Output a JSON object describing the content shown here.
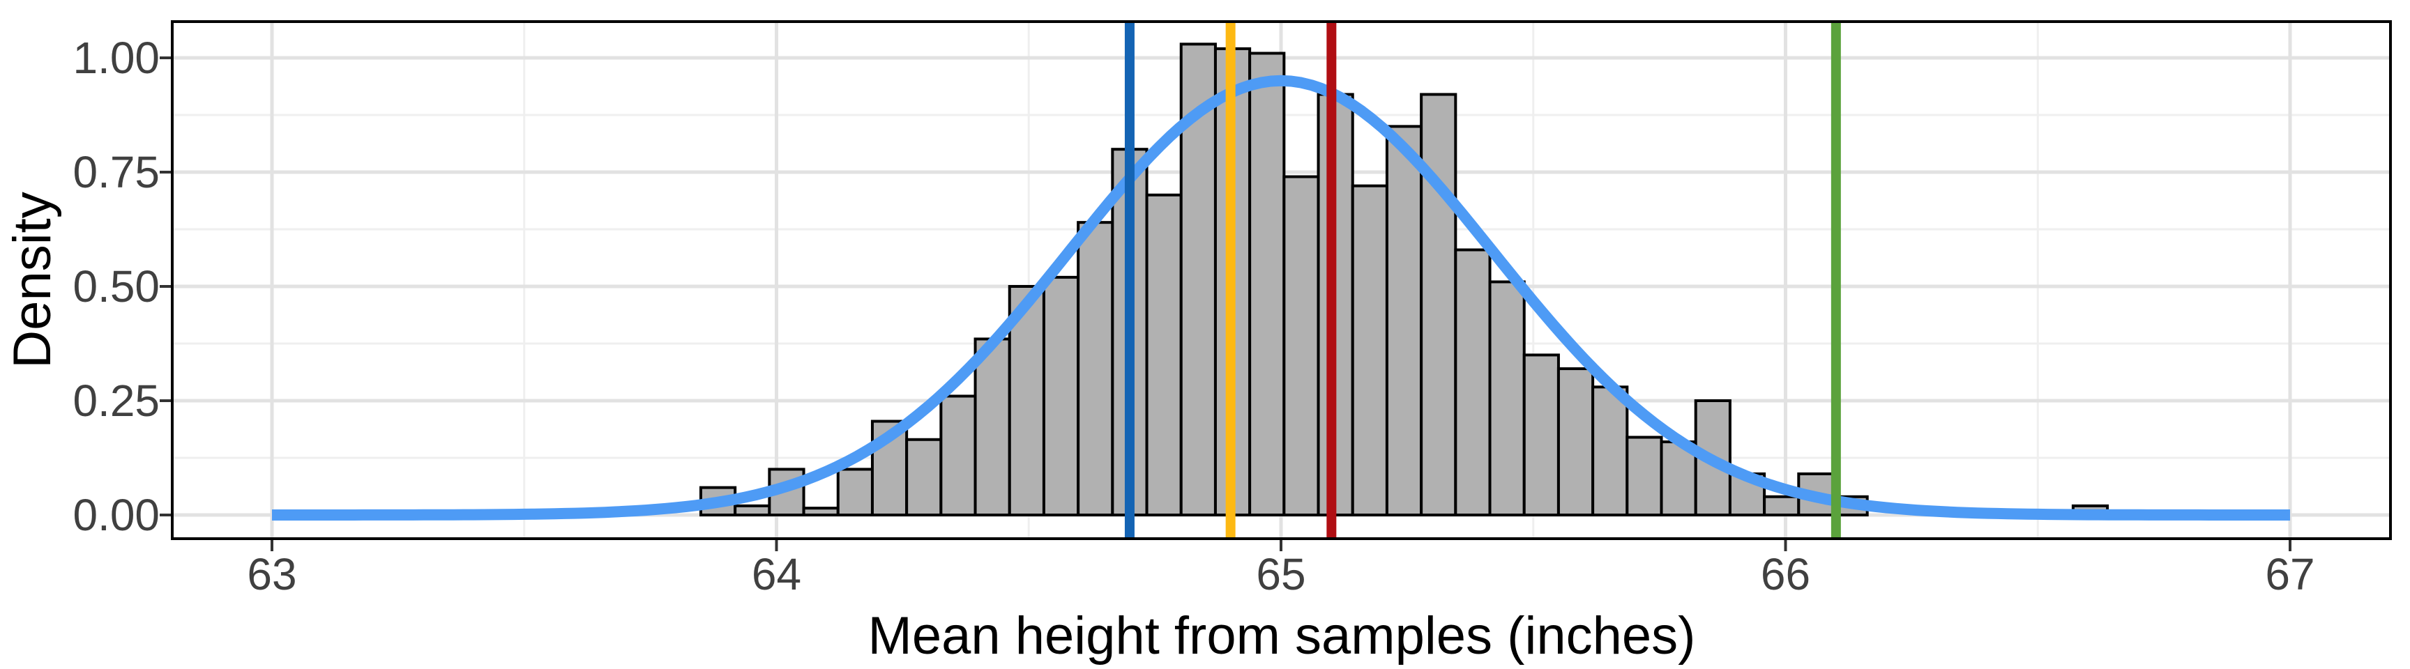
{
  "figure": {
    "background": "#FFFFFF"
  },
  "chart_data": {
    "type": "bar",
    "subtype": "histogram_with_density_curve",
    "title": "",
    "xlabel": "Mean height from samples (inches)",
    "ylabel": "Density",
    "xlim": [
      62.8,
      67.2
    ],
    "ylim": [
      -0.055,
      1.08
    ],
    "grid": {
      "visible": true,
      "major_color": "#E2E2E2",
      "minor_color": "#EFEFEF"
    },
    "panel_border_color": "#000000",
    "tick_label_color": "#404040",
    "tick_mark_color": "#333333",
    "x_axis": {
      "ticks": [
        {
          "v": 63,
          "label": "63"
        },
        {
          "v": 64,
          "label": "64"
        },
        {
          "v": 65,
          "label": "65"
        },
        {
          "v": 66,
          "label": "66"
        },
        {
          "v": 67,
          "label": "67"
        }
      ],
      "minor_ticks": [
        63.5,
        64.5,
        65.5,
        66.5
      ]
    },
    "y_axis": {
      "ticks": [
        {
          "v": 0.0,
          "label": "0.00"
        },
        {
          "v": 0.25,
          "label": "0.25"
        },
        {
          "v": 0.5,
          "label": "0.50"
        },
        {
          "v": 0.75,
          "label": "0.75"
        },
        {
          "v": 1.0,
          "label": "1.00"
        }
      ],
      "minor_ticks": [
        0.125,
        0.375,
        0.625,
        0.875
      ]
    },
    "histogram": {
      "bin_width": 0.068,
      "fill": "#B1B1B1",
      "stroke": "#000000",
      "bins": [
        {
          "x0": 63.85,
          "x1": 63.918,
          "density": 0.06
        },
        {
          "x0": 63.918,
          "x1": 63.986,
          "density": 0.02
        },
        {
          "x0": 63.986,
          "x1": 64.054,
          "density": 0.1
        },
        {
          "x0": 64.054,
          "x1": 64.122,
          "density": 0.015
        },
        {
          "x0": 64.122,
          "x1": 64.19,
          "density": 0.1
        },
        {
          "x0": 64.19,
          "x1": 64.258,
          "density": 0.205
        },
        {
          "x0": 64.258,
          "x1": 64.326,
          "density": 0.165
        },
        {
          "x0": 64.326,
          "x1": 64.394,
          "density": 0.26
        },
        {
          "x0": 64.394,
          "x1": 64.462,
          "density": 0.385
        },
        {
          "x0": 64.462,
          "x1": 64.53,
          "density": 0.5
        },
        {
          "x0": 64.53,
          "x1": 64.598,
          "density": 0.52
        },
        {
          "x0": 64.598,
          "x1": 64.666,
          "density": 0.64
        },
        {
          "x0": 64.666,
          "x1": 64.734,
          "density": 0.8
        },
        {
          "x0": 64.734,
          "x1": 64.802,
          "density": 0.7
        },
        {
          "x0": 64.802,
          "x1": 64.87,
          "density": 1.03
        },
        {
          "x0": 64.87,
          "x1": 64.938,
          "density": 1.02
        },
        {
          "x0": 64.938,
          "x1": 65.006,
          "density": 1.01
        },
        {
          "x0": 65.006,
          "x1": 65.074,
          "density": 0.74
        },
        {
          "x0": 65.074,
          "x1": 65.142,
          "density": 0.92
        },
        {
          "x0": 65.142,
          "x1": 65.21,
          "density": 0.72
        },
        {
          "x0": 65.21,
          "x1": 65.278,
          "density": 0.85
        },
        {
          "x0": 65.278,
          "x1": 65.346,
          "density": 0.92
        },
        {
          "x0": 65.346,
          "x1": 65.414,
          "density": 0.58
        },
        {
          "x0": 65.414,
          "x1": 65.482,
          "density": 0.51
        },
        {
          "x0": 65.482,
          "x1": 65.55,
          "density": 0.35
        },
        {
          "x0": 65.55,
          "x1": 65.618,
          "density": 0.32
        },
        {
          "x0": 65.618,
          "x1": 65.686,
          "density": 0.28
        },
        {
          "x0": 65.686,
          "x1": 65.754,
          "density": 0.17
        },
        {
          "x0": 65.754,
          "x1": 65.822,
          "density": 0.16
        },
        {
          "x0": 65.822,
          "x1": 65.89,
          "density": 0.25
        },
        {
          "x0": 65.89,
          "x1": 65.958,
          "density": 0.09
        },
        {
          "x0": 65.958,
          "x1": 66.026,
          "density": 0.04
        },
        {
          "x0": 66.026,
          "x1": 66.094,
          "density": 0.09
        },
        {
          "x0": 66.094,
          "x1": 66.162,
          "density": 0.04
        },
        {
          "x0": 66.162,
          "x1": 66.23,
          "density": 0.0
        },
        {
          "x0": 66.23,
          "x1": 66.298,
          "density": 0.0
        },
        {
          "x0": 66.298,
          "x1": 66.366,
          "density": 0.0
        },
        {
          "x0": 66.366,
          "x1": 66.434,
          "density": 0.0
        },
        {
          "x0": 66.434,
          "x1": 66.502,
          "density": 0.0
        },
        {
          "x0": 66.502,
          "x1": 66.57,
          "density": 0.0
        },
        {
          "x0": 66.57,
          "x1": 66.638,
          "density": 0.02
        }
      ]
    },
    "density_curve": {
      "color": "#4E9BF5",
      "mean": 65.0,
      "sd": 0.42,
      "peak_density": 0.95,
      "x_start": 63.0,
      "x_end": 67.0,
      "points": [
        [
          63.0,
          0.0
        ],
        [
          63.125,
          0.0
        ],
        [
          63.25,
          0.0002
        ],
        [
          63.375,
          0.0005
        ],
        [
          63.5,
          0.0016
        ],
        [
          63.625,
          0.0045
        ],
        [
          63.75,
          0.0113
        ],
        [
          63.875,
          0.0263
        ],
        [
          64.0,
          0.0559
        ],
        [
          64.125,
          0.1085
        ],
        [
          64.25,
          0.1928
        ],
        [
          64.375,
          0.314
        ],
        [
          64.5,
          0.4677
        ],
        [
          64.625,
          0.6376
        ],
        [
          64.75,
          0.7958
        ],
        [
          64.875,
          0.9089
        ],
        [
          65.0,
          0.95
        ],
        [
          65.125,
          0.9089
        ],
        [
          65.25,
          0.7958
        ],
        [
          65.375,
          0.6376
        ],
        [
          65.5,
          0.4677
        ],
        [
          65.625,
          0.314
        ],
        [
          65.75,
          0.1928
        ],
        [
          65.875,
          0.1085
        ],
        [
          66.0,
          0.0559
        ],
        [
          66.125,
          0.0263
        ],
        [
          66.25,
          0.0113
        ],
        [
          66.375,
          0.0045
        ],
        [
          66.5,
          0.0016
        ],
        [
          66.625,
          0.0005
        ],
        [
          66.75,
          0.0002
        ],
        [
          66.875,
          0.0
        ],
        [
          67.0,
          0.0
        ]
      ]
    },
    "vlines": [
      {
        "x": 64.7,
        "color": "#1464B4",
        "name": "blue"
      },
      {
        "x": 64.9,
        "color": "#FDB913",
        "name": "orange"
      },
      {
        "x": 65.1,
        "color": "#B00E13",
        "name": "red"
      },
      {
        "x": 66.1,
        "color": "#5BA23C",
        "name": "green"
      }
    ]
  }
}
